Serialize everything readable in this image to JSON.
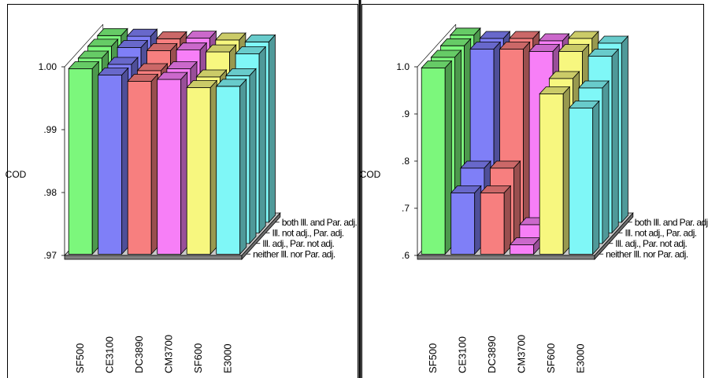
{
  "colors": {
    "SF500": "#7CF77C",
    "CE3100": "#7F7FF7",
    "DC3890": "#F77F7F",
    "CM3700": "#F77FF7",
    "SF600": "#F7F77F",
    "E3000": "#7FF7F7"
  },
  "chart_data": [
    {
      "type": "bar3d",
      "ylabel": "COD",
      "ylim": [
        0.97,
        1.0
      ],
      "yticks": [
        ".97",
        ".98",
        ".99",
        "1.00"
      ],
      "categories": [
        "SF500",
        "CE3100",
        "DC3890",
        "CM3700",
        "SF600",
        "E3000"
      ],
      "depth_labels": [
        "neither Ill. nor Par. adj.",
        "Ill. adj., Par. not adj.",
        "Ill. not adj., Par. adj.",
        "both Ill. and Par. adj."
      ],
      "series": [
        {
          "name": "neither Ill. nor Par. adj.",
          "values": [
            0.9995,
            0.9985,
            0.9975,
            0.9978,
            0.9965,
            0.9967
          ]
        },
        {
          "name": "Ill. adj., Par. not adj.",
          "values": [
            0.9995,
            0.9985,
            0.9975,
            0.9978,
            0.9965,
            0.9967
          ]
        },
        {
          "name": "Ill. not adj., Par. adj.",
          "values": [
            0.9997,
            0.9995,
            0.999,
            0.9991,
            0.9988,
            0.9985
          ]
        },
        {
          "name": "both Ill. and Par. adj.",
          "values": [
            0.9997,
            0.9996,
            0.9992,
            0.9993,
            0.999,
            0.9987
          ]
        }
      ]
    },
    {
      "type": "bar3d",
      "ylabel": "COD",
      "ylim": [
        0.6,
        1.0
      ],
      "yticks": [
        ".6",
        ".7",
        ".8",
        ".9",
        "1.0"
      ],
      "categories": [
        "SF500",
        "CE3100",
        "DC3890",
        "CM3700",
        "SF600",
        "E3000"
      ],
      "depth_labels": [
        "neither Ill. nor Par. adj.",
        "Ill. adj., Par. not adj.",
        "Ill. not adj., Par. adj.",
        "both Ill. and Par. adj."
      ],
      "series": [
        {
          "name": "neither Ill. nor Par. adj.",
          "values": [
            0.995,
            0.73,
            0.73,
            0.62,
            0.94,
            0.91
          ]
        },
        {
          "name": "Ill. adj., Par. not adj.",
          "values": [
            0.995,
            0.76,
            0.76,
            0.64,
            0.95,
            0.93
          ]
        },
        {
          "name": "Ill. not adj., Par. adj.",
          "values": [
            0.997,
            0.99,
            0.99,
            0.985,
            0.985,
            0.975
          ]
        },
        {
          "name": "both Ill. and Par. adj.",
          "values": [
            0.997,
            0.99,
            0.99,
            0.985,
            0.99,
            0.98
          ]
        }
      ]
    }
  ]
}
